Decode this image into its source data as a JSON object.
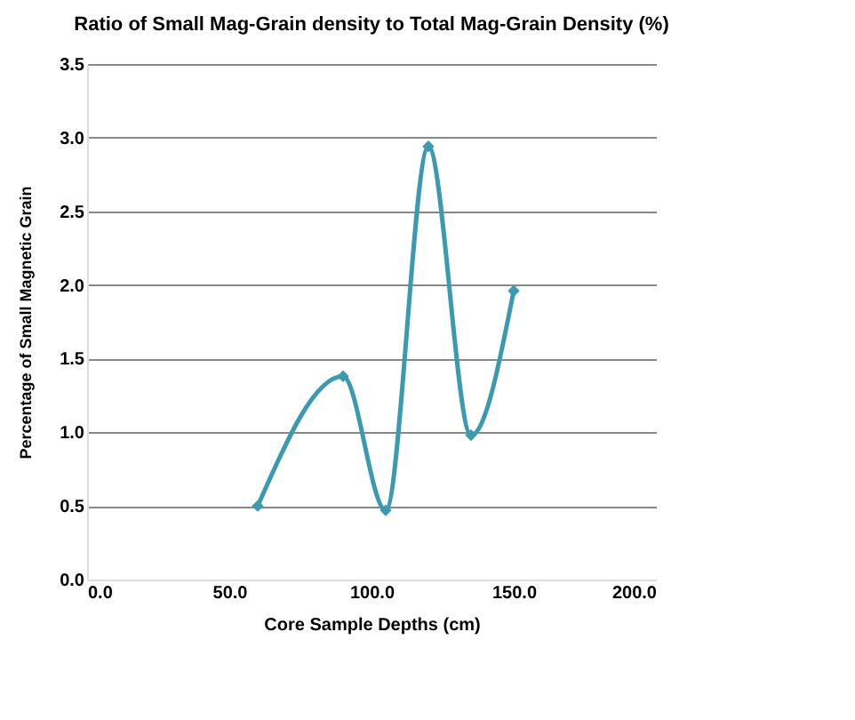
{
  "chart_data": {
    "type": "line",
    "title": "Ratio of Small Mag-Grain density to Total Mag-Grain Density (%)",
    "xlabel": "Core Sample Depths (cm)",
    "ylabel": "Percentage of Small Magnetic Grain",
    "x": [
      60,
      90,
      105,
      120,
      135,
      150
    ],
    "series": [
      {
        "color": "#3a9bb0",
        "values": [
          0.5,
          1.38,
          0.47,
          2.94,
          0.98,
          1.96
        ]
      }
    ],
    "xlim": [
      0,
      200
    ],
    "xticks": [
      {
        "value": 0,
        "label": "0.0"
      },
      {
        "value": 50,
        "label": "50.0"
      },
      {
        "value": 100,
        "label": "100.0"
      },
      {
        "value": 150,
        "label": "150.0"
      },
      {
        "value": 200,
        "label": "200.0"
      }
    ],
    "ylim": [
      0,
      3.5
    ],
    "yticks": [
      {
        "value": 0,
        "label": "0.0"
      },
      {
        "value": 0.5,
        "label": "0.5"
      },
      {
        "value": 1,
        "label": "1.0"
      },
      {
        "value": 1.5,
        "label": "1.5"
      },
      {
        "value": 2,
        "label": "2.0"
      },
      {
        "value": 2.5,
        "label": "2.5"
      },
      {
        "value": 3,
        "label": "3.0"
      },
      {
        "value": 3.5,
        "label": "3.5"
      }
    ],
    "grid": "y",
    "marker": "diamond",
    "line_style": "solid"
  }
}
